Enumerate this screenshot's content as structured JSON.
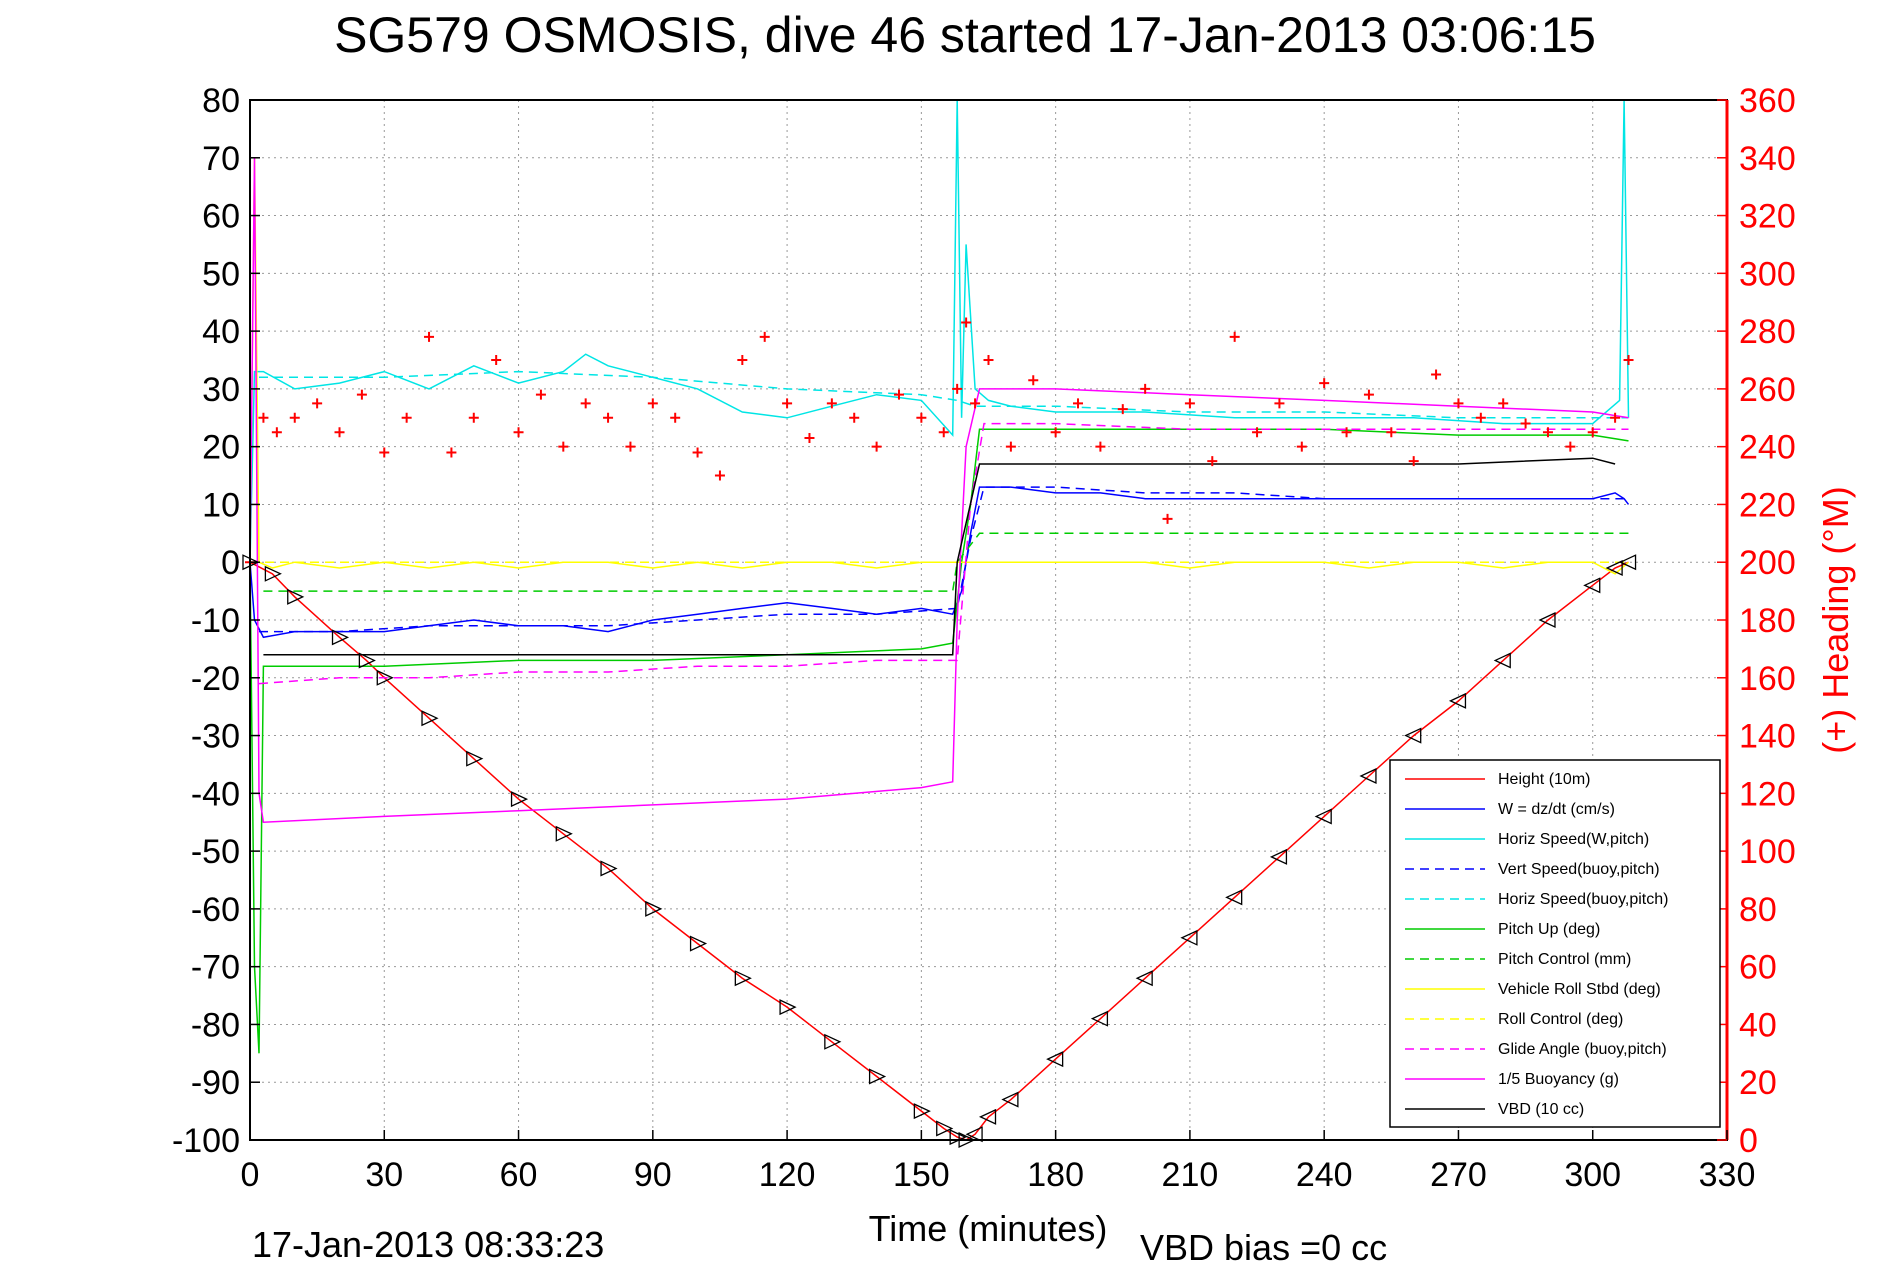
{
  "chart_data": {
    "type": "line",
    "title": "SG579 OSMOSIS, dive 46 started 17-Jan-2013 03:06:15",
    "xlabel": "Time (minutes)",
    "ylabel": "",
    "y2label": "(+) Heading (°M)",
    "xlim": [
      0,
      330
    ],
    "ylim": [
      -100,
      80
    ],
    "y2lim": [
      0,
      360
    ],
    "xticks": [
      "0",
      "30",
      "60",
      "90",
      "120",
      "150",
      "180",
      "210",
      "240",
      "270",
      "300",
      "330"
    ],
    "yticks": [
      "80",
      "70",
      "60",
      "50",
      "40",
      "30",
      "20",
      "10",
      "0",
      "-10",
      "-20",
      "-30",
      "-40",
      "-50",
      "-60",
      "-70",
      "-80",
      "-90",
      "-100"
    ],
    "y2ticks": [
      "360",
      "340",
      "320",
      "300",
      "280",
      "260",
      "240",
      "220",
      "200",
      "180",
      "160",
      "140",
      "120",
      "100",
      "80",
      "60",
      "40",
      "20",
      "0"
    ],
    "grid": true,
    "legend_position": "bottom-right",
    "footer_left": "17-Jan-2013 08:33:23",
    "footer_right": "VBD bias =0 cc",
    "colors": {
      "axis": "#000000",
      "right_axis": "#ff0000",
      "grid": "#999999"
    },
    "series": [
      {
        "name": "Height (10m)",
        "color": "#ff0000",
        "dash": "solid",
        "x": [
          0,
          5,
          10,
          20,
          26,
          30,
          40,
          50,
          60,
          70,
          80,
          90,
          100,
          110,
          120,
          130,
          140,
          150,
          155,
          158,
          160,
          162,
          165,
          170,
          180,
          190,
          200,
          210,
          220,
          230,
          240,
          250,
          260,
          270,
          280,
          290,
          300,
          305,
          308
        ],
        "y": [
          0,
          -2,
          -6,
          -13,
          -17,
          -20,
          -27,
          -34,
          -41,
          -47,
          -53,
          -60,
          -66,
          -72,
          -77,
          -83,
          -89,
          -95,
          -98,
          -99.5,
          -100,
          -99,
          -96,
          -93,
          -86,
          -79,
          -72,
          -65,
          -58,
          -51,
          -44,
          -37,
          -30,
          -24,
          -17,
          -10,
          -4,
          -1,
          0
        ]
      },
      {
        "name": "W = dz/dt (cm/s)",
        "color": "#0000ff",
        "dash": "solid",
        "x": [
          0,
          1,
          3,
          10,
          20,
          30,
          40,
          50,
          60,
          70,
          80,
          90,
          100,
          110,
          120,
          130,
          140,
          150,
          157,
          159,
          161,
          163,
          170,
          180,
          190,
          200,
          210,
          220,
          240,
          260,
          280,
          300,
          305,
          307,
          308
        ],
        "y": [
          0,
          -10,
          -13,
          -12,
          -12,
          -12,
          -11,
          -10,
          -11,
          -11,
          -12,
          -10,
          -9,
          -8,
          -7,
          -8,
          -9,
          -8,
          -9,
          -5,
          5,
          13,
          13,
          12,
          12,
          11,
          11,
          11,
          11,
          11,
          11,
          11,
          12,
          11,
          10
        ]
      },
      {
        "name": "Horiz Speed(W,pitch)",
        "color": "#00e5e5",
        "dash": "solid",
        "x": [
          0,
          1,
          3,
          10,
          20,
          30,
          40,
          50,
          60,
          70,
          75,
          80,
          90,
          100,
          110,
          120,
          130,
          140,
          150,
          157,
          158,
          159,
          160,
          162,
          165,
          170,
          180,
          200,
          220,
          240,
          260,
          280,
          300,
          306,
          307,
          308
        ],
        "y": [
          0,
          33,
          33,
          30,
          31,
          33,
          30,
          34,
          31,
          33,
          36,
          34,
          32,
          30,
          26,
          25,
          27,
          29,
          28,
          22,
          80,
          25,
          55,
          30,
          28,
          27,
          26,
          26,
          25,
          25,
          25,
          24,
          24,
          28,
          80,
          25
        ]
      },
      {
        "name": "Vert Speed(buoy,pitch)",
        "color": "#0000ff",
        "dash": "dashed",
        "x": [
          2,
          20,
          40,
          60,
          80,
          100,
          120,
          140,
          158,
          161,
          164,
          180,
          200,
          220,
          240,
          260,
          280,
          300,
          308
        ],
        "y": [
          -12,
          -12,
          -11,
          -11,
          -11,
          -10,
          -9,
          -9,
          -8,
          4,
          13,
          13,
          12,
          12,
          11,
          11,
          11,
          11,
          11
        ]
      },
      {
        "name": "Horiz Speed(buoy,pitch)",
        "color": "#00e5e5",
        "dash": "dashed",
        "x": [
          2,
          30,
          60,
          90,
          120,
          150,
          158,
          162,
          180,
          210,
          240,
          270,
          300,
          308
        ],
        "y": [
          32,
          32,
          33,
          32,
          30,
          29,
          28,
          27,
          27,
          26,
          26,
          25,
          25,
          25
        ]
      },
      {
        "name": "Pitch Up (deg)",
        "color": "#00cc00",
        "dash": "solid",
        "x": [
          0,
          1,
          2,
          3,
          10,
          30,
          60,
          90,
          120,
          150,
          157,
          159,
          161,
          163,
          180,
          210,
          240,
          270,
          300,
          308
        ],
        "y": [
          0,
          -70,
          -85,
          -18,
          -18,
          -18,
          -17,
          -17,
          -16,
          -15,
          -14,
          0,
          10,
          23,
          23,
          23,
          23,
          22,
          22,
          21
        ]
      },
      {
        "name": "Pitch Control (mm)",
        "color": "#00cc00",
        "dash": "dashed",
        "x": [
          3,
          157,
          158,
          163,
          308
        ],
        "y": [
          -5,
          -5,
          0,
          5,
          5
        ]
      },
      {
        "name": "Vehicle Roll Stbd (deg)",
        "color": "#ffff00",
        "dash": "solid",
        "x": [
          0,
          1,
          2,
          5,
          10,
          20,
          30,
          40,
          50,
          60,
          70,
          80,
          90,
          100,
          110,
          120,
          130,
          140,
          150,
          160,
          170,
          180,
          190,
          200,
          210,
          220,
          230,
          240,
          250,
          260,
          270,
          280,
          290,
          300,
          305,
          308
        ],
        "y": [
          0,
          70,
          0,
          -1,
          0,
          -1,
          0,
          -1,
          0,
          -1,
          0,
          0,
          -1,
          0,
          -1,
          0,
          0,
          -1,
          0,
          0,
          0,
          0,
          0,
          0,
          -1,
          0,
          0,
          0,
          -1,
          0,
          0,
          -1,
          0,
          0,
          -2,
          0
        ]
      },
      {
        "name": "Roll Control (deg)",
        "color": "#ffff00",
        "dash": "dashed",
        "x": [
          0,
          20,
          40,
          60,
          80,
          100,
          120,
          140,
          158,
          162,
          200,
          240,
          280,
          308
        ],
        "y": [
          0,
          0,
          0,
          0,
          0,
          0,
          0,
          0,
          0,
          0,
          0,
          0,
          0,
          0
        ]
      },
      {
        "name": "Glide Angle (buoy,pitch)",
        "color": "#ff00ff",
        "dash": "dashed",
        "x": [
          2,
          20,
          40,
          60,
          80,
          100,
          120,
          140,
          158,
          161,
          164,
          180,
          210,
          240,
          270,
          300,
          308
        ],
        "y": [
          -21,
          -20,
          -20,
          -19,
          -19,
          -18,
          -18,
          -17,
          -17,
          10,
          24,
          24,
          23,
          23,
          23,
          23,
          23
        ]
      },
      {
        "name": "1/5 Buoyancy (g)",
        "color": "#ff00ff",
        "dash": "solid",
        "x": [
          0,
          1,
          2,
          3,
          30,
          60,
          90,
          120,
          150,
          157,
          158,
          160,
          163,
          180,
          210,
          240,
          270,
          300,
          308
        ],
        "y": [
          0,
          70,
          -40,
          -45,
          -44,
          -43,
          -42,
          -41,
          -39,
          -38,
          -10,
          20,
          30,
          30,
          29,
          28,
          27,
          26,
          25
        ]
      },
      {
        "name": "VBD (10 cc)",
        "color": "#000000",
        "dash": "solid",
        "x": [
          3,
          157,
          158,
          163,
          200,
          240,
          270,
          300,
          305
        ],
        "y": [
          -16,
          -16,
          0,
          17,
          17,
          17,
          17,
          18,
          17
        ]
      },
      {
        "name": "Heading",
        "axis": "right",
        "color": "#ff0000",
        "marker": "+",
        "dash": "none",
        "x": [
          0,
          3,
          6,
          10,
          15,
          20,
          25,
          30,
          35,
          40,
          45,
          50,
          55,
          60,
          65,
          70,
          75,
          80,
          85,
          90,
          95,
          100,
          105,
          110,
          115,
          120,
          125,
          130,
          135,
          140,
          145,
          150,
          155,
          158,
          160,
          162,
          165,
          170,
          175,
          180,
          185,
          190,
          195,
          200,
          205,
          210,
          215,
          220,
          225,
          230,
          235,
          240,
          245,
          250,
          255,
          260,
          265,
          270,
          275,
          280,
          285,
          290,
          295,
          300,
          305,
          308
        ],
        "y": [
          200,
          250,
          245,
          250,
          255,
          245,
          258,
          238,
          250,
          278,
          238,
          250,
          270,
          245,
          258,
          240,
          255,
          250,
          240,
          255,
          250,
          238,
          230,
          270,
          278,
          255,
          243,
          255,
          250,
          240,
          258,
          250,
          245,
          260,
          283,
          255,
          270,
          240,
          263,
          245,
          255,
          240,
          253,
          260,
          215,
          255,
          235,
          278,
          245,
          255,
          240,
          262,
          245,
          258,
          245,
          235,
          265,
          255,
          250,
          255,
          248,
          245,
          240,
          245,
          250,
          270
        ]
      }
    ]
  }
}
